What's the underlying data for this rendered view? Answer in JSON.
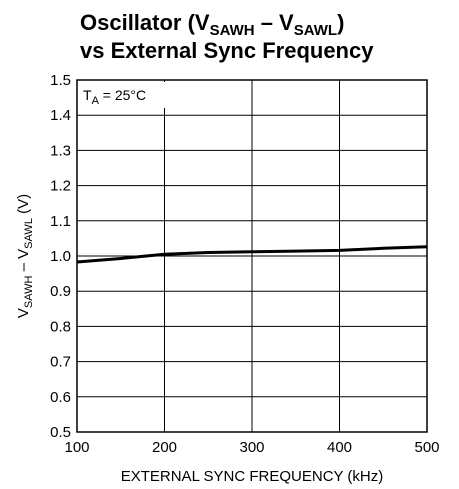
{
  "chart_data": {
    "type": "line",
    "title_line1": {
      "main": "Oscillator (V",
      "sub1": "SAWH",
      "mid": " – V",
      "sub2": "SAWL",
      "end": ")"
    },
    "title_line2": "vs External Sync Frequency",
    "xlabel": "EXTERNAL SYNC FREQUENCY (kHz)",
    "ylabel": {
      "v1": "V",
      "sub1": "SAWH",
      "mid": " – V",
      "v2": "",
      "sub2": "SAWL",
      "end": " (V)"
    },
    "annotation": {
      "main": "T",
      "sub": "A",
      "rest": " = 25°C"
    },
    "xlim": [
      100,
      500
    ],
    "ylim": [
      0.5,
      1.5
    ],
    "x_ticks": [
      100,
      200,
      300,
      400,
      500
    ],
    "x_tick_labels": [
      "100",
      "200",
      "300",
      "400",
      "500"
    ],
    "y_ticks": [
      0.5,
      0.6,
      0.7,
      0.8,
      0.9,
      1.0,
      1.1,
      1.2,
      1.3,
      1.4,
      1.5
    ],
    "y_tick_labels": [
      "0.5",
      "0.6",
      "0.7",
      "0.8",
      "0.9",
      "1.0",
      "1.1",
      "1.2",
      "1.3",
      "1.4",
      "1.5"
    ],
    "grid": true,
    "series": [
      {
        "x": [
          100,
          150,
          200,
          250,
          300,
          350,
          400,
          450,
          500
        ],
        "y": [
          0.983,
          0.993,
          1.005,
          1.01,
          1.012,
          1.014,
          1.016,
          1.022,
          1.026
        ],
        "color": "#000000"
      }
    ]
  }
}
